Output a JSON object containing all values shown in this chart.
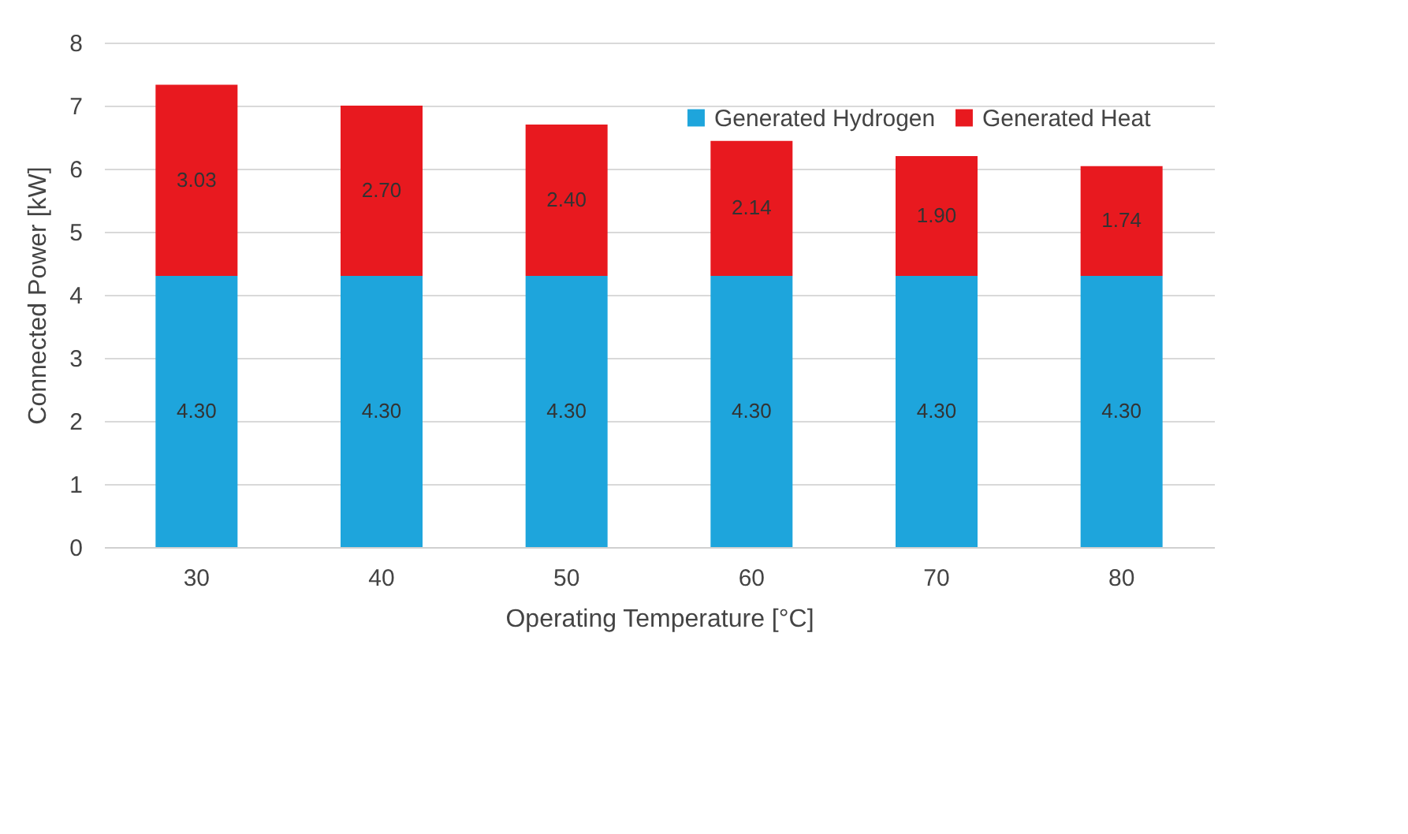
{
  "chart_data": {
    "type": "bar",
    "stacked": true,
    "xlabel": "Operating Temperature [°C]",
    "ylabel": "Connected Power [kW]",
    "categories": [
      "30",
      "40",
      "50",
      "60",
      "70",
      "80"
    ],
    "series": [
      {
        "name": "Generated Hydrogen",
        "color": "#1ea5dc",
        "values": [
          4.3,
          4.3,
          4.3,
          4.3,
          4.3,
          4.3
        ],
        "value_labels": [
          "4.30",
          "4.30",
          "4.30",
          "4.30",
          "4.30",
          "4.30"
        ]
      },
      {
        "name": "Generated Heat",
        "color": "#e8191f",
        "values": [
          3.03,
          2.7,
          2.4,
          2.14,
          1.9,
          1.74
        ],
        "value_labels": [
          "3.03",
          "2.70",
          "2.40",
          "2.14",
          "1.90",
          "1.74"
        ]
      }
    ],
    "ylim": [
      0,
      8
    ],
    "yticks": [
      0,
      1,
      2,
      3,
      4,
      5,
      6,
      7,
      8
    ],
    "grid": "y",
    "legend": "top right"
  }
}
